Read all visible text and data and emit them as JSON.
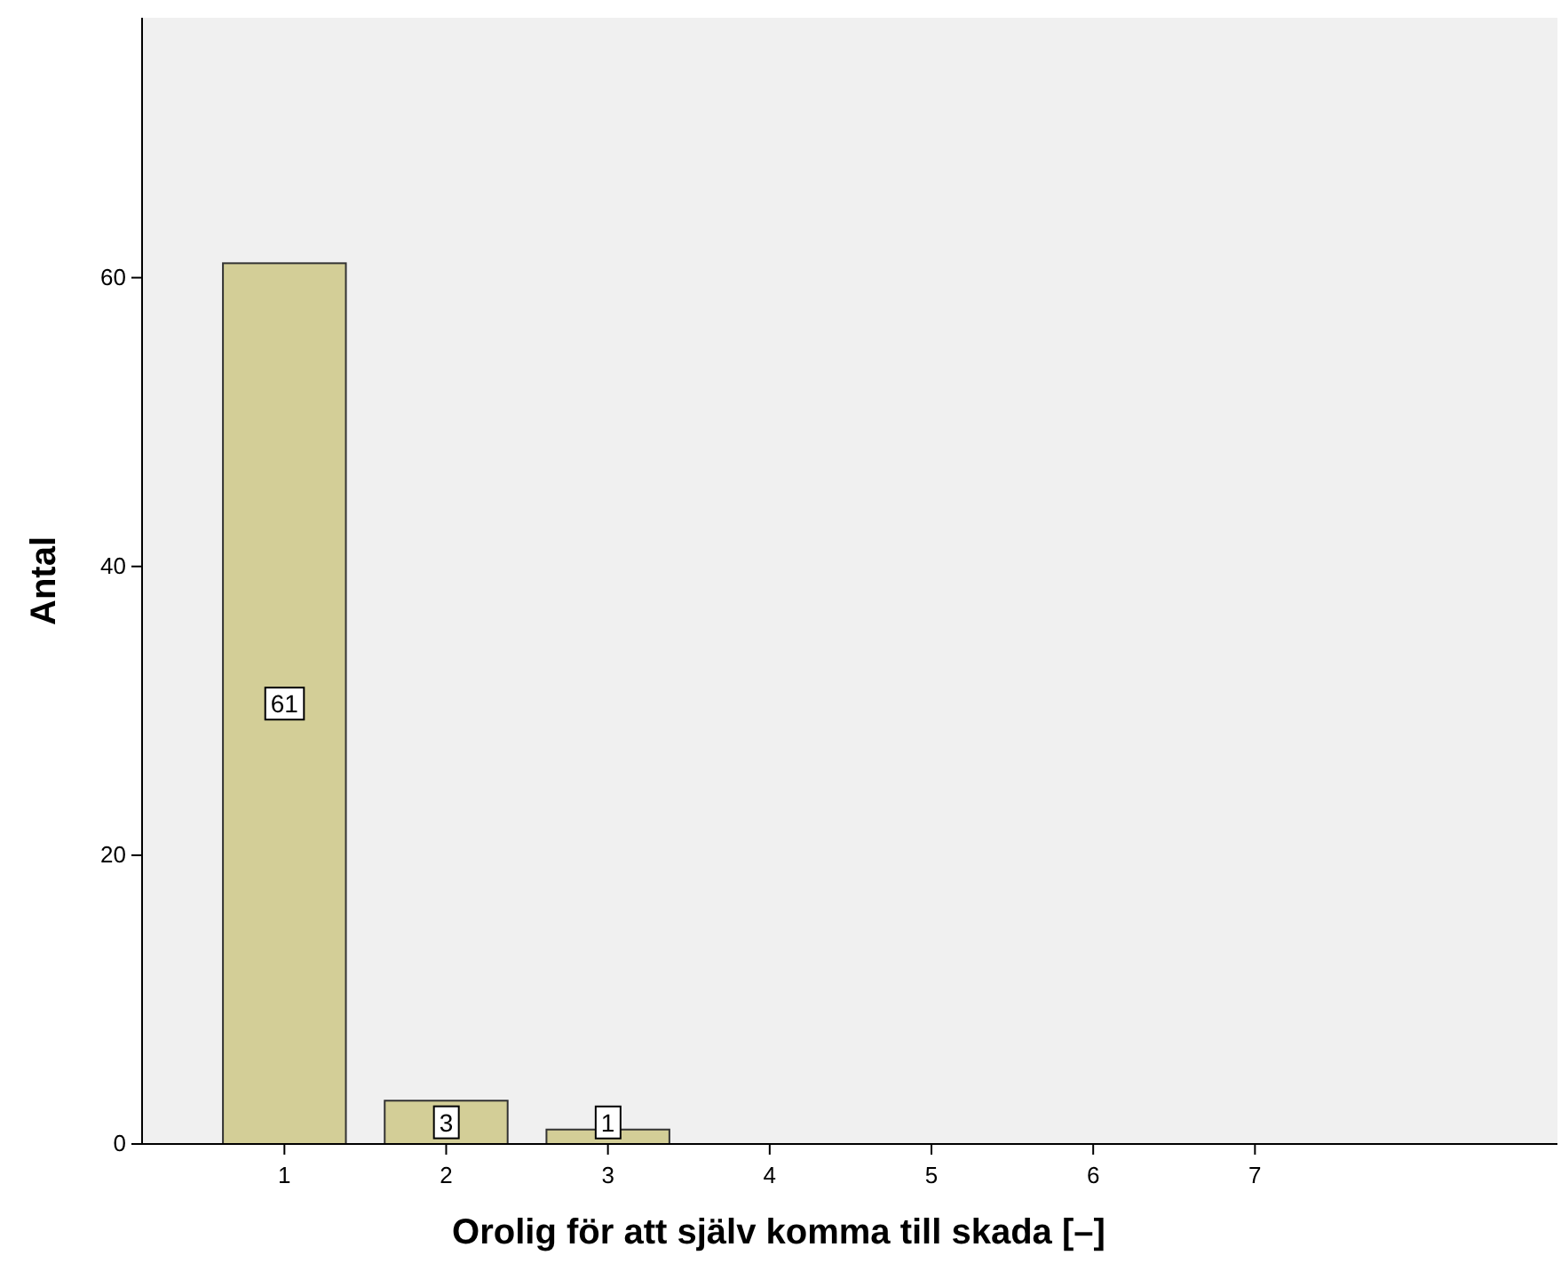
{
  "chart_data": {
    "type": "bar",
    "xlabel": "Orolig för att själv komma till skada [–]",
    "ylabel": "Antal",
    "categories": [
      "1",
      "2",
      "3",
      "4",
      "5",
      "6",
      "7"
    ],
    "values": [
      61,
      3,
      1,
      0,
      0,
      0,
      0
    ],
    "value_labels": [
      "61",
      "3",
      "1",
      null,
      null,
      null,
      null
    ],
    "color": "#d3ce97",
    "ylim": [
      0,
      78
    ],
    "yticks": [
      0,
      20,
      40,
      60
    ],
    "grid": false
  }
}
